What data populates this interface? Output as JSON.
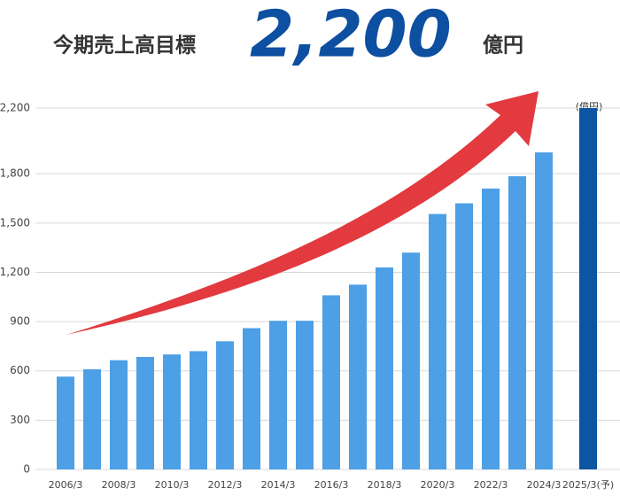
{
  "chart_data": {
    "type": "bar",
    "title": "今期売上高目標",
    "headline": "2,200",
    "headline_unit": "億円",
    "unit": "(億円)",
    "categories": [
      "2006/3",
      null,
      "2008/3",
      null,
      "2010/3",
      null,
      "2012/3",
      null,
      "2014/3",
      null,
      "2016/3",
      null,
      "2018/3",
      null,
      "2020/3",
      null,
      "2022/3",
      null,
      "2024/3",
      "2025/3(予)"
    ],
    "values": [
      565,
      610,
      665,
      685,
      700,
      720,
      780,
      860,
      905,
      905,
      1060,
      1125,
      1230,
      1320,
      1555,
      1620,
      1710,
      1785,
      1930,
      2200
    ],
    "colors": [
      "#4d9fe6",
      "#4d9fe6",
      "#4d9fe6",
      "#4d9fe6",
      "#4d9fe6",
      "#4d9fe6",
      "#4d9fe6",
      "#4d9fe6",
      "#4d9fe6",
      "#4d9fe6",
      "#4d9fe6",
      "#4d9fe6",
      "#4d9fe6",
      "#4d9fe6",
      "#4d9fe6",
      "#4d9fe6",
      "#4d9fe6",
      "#4d9fe6",
      "#4d9fe6",
      "#0c55a3"
    ],
    "ylim": [
      0,
      2200
    ],
    "yticks": [
      0,
      300,
      600,
      900,
      {
        "value": 1200,
        "label": "1,200"
      },
      {
        "value": 1500,
        "label": "1,500"
      },
      {
        "value": 1800,
        "label": "1,800"
      },
      {
        "value": 2200,
        "label": "2,200"
      }
    ],
    "grid": true
  }
}
